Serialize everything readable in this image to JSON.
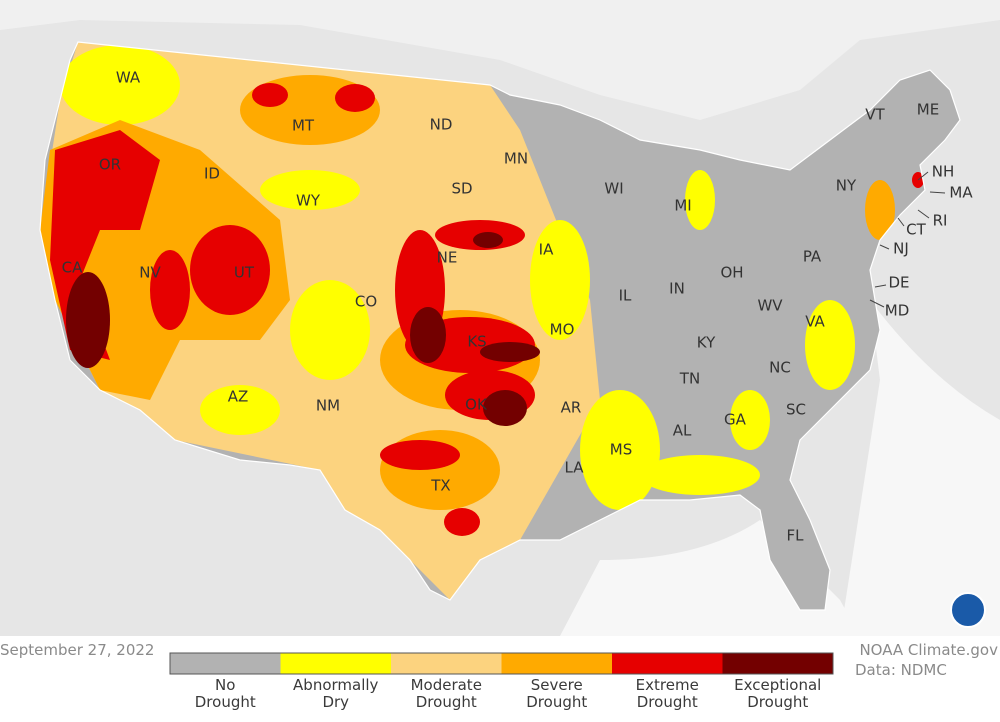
{
  "date": "September 27, 2022",
  "credits": [
    "NOAA Climate.gov",
    "Data: NDMC"
  ],
  "states": [
    "WA",
    "OR",
    "CA",
    "NV",
    "ID",
    "MT",
    "WY",
    "UT",
    "AZ",
    "CO",
    "NM",
    "ND",
    "SD",
    "NE",
    "KS",
    "OK",
    "TX",
    "MN",
    "IA",
    "MO",
    "AR",
    "LA",
    "WI",
    "IL",
    "MI",
    "IN",
    "OH",
    "KY",
    "TN",
    "MS",
    "AL",
    "GA",
    "FL",
    "SC",
    "NC",
    "VA",
    "WV",
    "PA",
    "NY",
    "VT",
    "ME",
    "NH",
    "MA",
    "RI",
    "CT",
    "NJ",
    "DE",
    "MD"
  ],
  "legend": {
    "items": [
      {
        "color": "#b2b2b2",
        "label": [
          "No",
          "Drought"
        ]
      },
      {
        "color": "#ffff00",
        "label": [
          "Abnormally",
          "Dry"
        ]
      },
      {
        "color": "#fcd37f",
        "label": [
          "Moderate",
          "Drought"
        ]
      },
      {
        "color": "#ffaa00",
        "label": [
          "Severe",
          "Drought"
        ]
      },
      {
        "color": "#e60000",
        "label": [
          "Extreme",
          "Drought"
        ]
      },
      {
        "color": "#730000",
        "label": [
          "Exceptional",
          "Drought"
        ]
      }
    ]
  }
}
